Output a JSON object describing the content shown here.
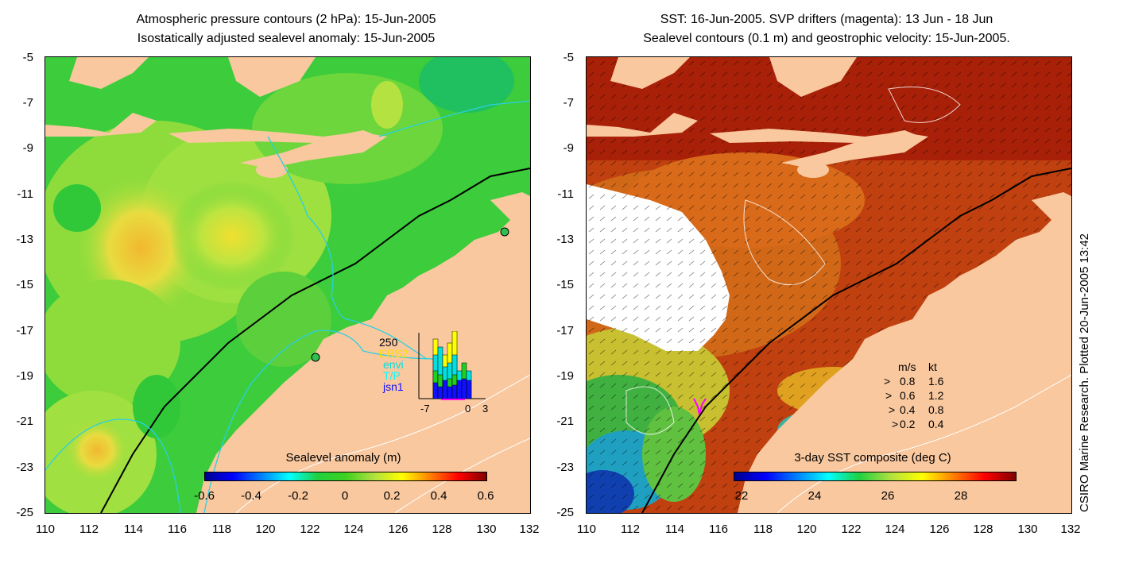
{
  "left": {
    "title_line1": "Atmospheric pressure contours (2 hPa): 15-Jun-2005",
    "title_line2": "Isostatically adjusted sealevel anomaly: 15-Jun-2005",
    "y_ticks": [
      "-5",
      "-7",
      "-9",
      "-11",
      "-13",
      "-15",
      "-17",
      "-19",
      "-21",
      "-23",
      "-25"
    ],
    "x_ticks": [
      "110",
      "112",
      "114",
      "116",
      "118",
      "120",
      "122",
      "124",
      "126",
      "128",
      "130",
      "132"
    ],
    "colorbar_title": "Sealevel anomaly (m)",
    "colorbar_ticks": [
      "-0.6",
      "-0.4",
      "-0.2",
      "0",
      "0.2",
      "0.4",
      "0.6"
    ],
    "inset": {
      "legend": [
        "250",
        "ERS2",
        "envi",
        "T/P",
        "jsn1"
      ],
      "legend_colors": [
        "#000000",
        "#ffff00",
        "#00e0e0",
        "#00ffff",
        "#1010ff"
      ],
      "x_ticks": [
        "-7",
        "0",
        "3"
      ]
    }
  },
  "right": {
    "title_line1": "SST: 16-Jun-2005. SVP drifters (magenta): 13 Jun - 18 Jun",
    "title_line2": "Sealevel contours (0.1 m) and geostrophic velocity: 15-Jun-2005.",
    "y_ticks": [
      "-5",
      "-7",
      "-9",
      "-11",
      "-13",
      "-15",
      "-17",
      "-19",
      "-21",
      "-23",
      "-25"
    ],
    "x_ticks": [
      "110",
      "112",
      "114",
      "116",
      "118",
      "120",
      "122",
      "124",
      "126",
      "128",
      "130",
      "132"
    ],
    "colorbar_title": "3-day SST composite (deg C)",
    "colorbar_ticks": [
      "22",
      "24",
      "26",
      "28"
    ],
    "velocity_legend": {
      "header_ms": "m/s",
      "header_kt": "kt",
      "rows": [
        {
          "ms": "0.8",
          "kt": "1.6"
        },
        {
          "ms": "0.6",
          "kt": "1.2"
        },
        {
          "ms": "0.4",
          "kt": "0.8"
        },
        {
          "ms": "0.2",
          "kt": "0.4"
        }
      ]
    }
  },
  "credit": "CSIRO Marine Research. Plotted 20-Jun-2005 13:42",
  "colors": {
    "land": "#f9c89f",
    "sla_green": "#3cd03c",
    "sla_yellow": "#d8e840",
    "sst_warm": "#b83208",
    "sst_orange": "#d8701a",
    "cloud": "#ffffff"
  }
}
